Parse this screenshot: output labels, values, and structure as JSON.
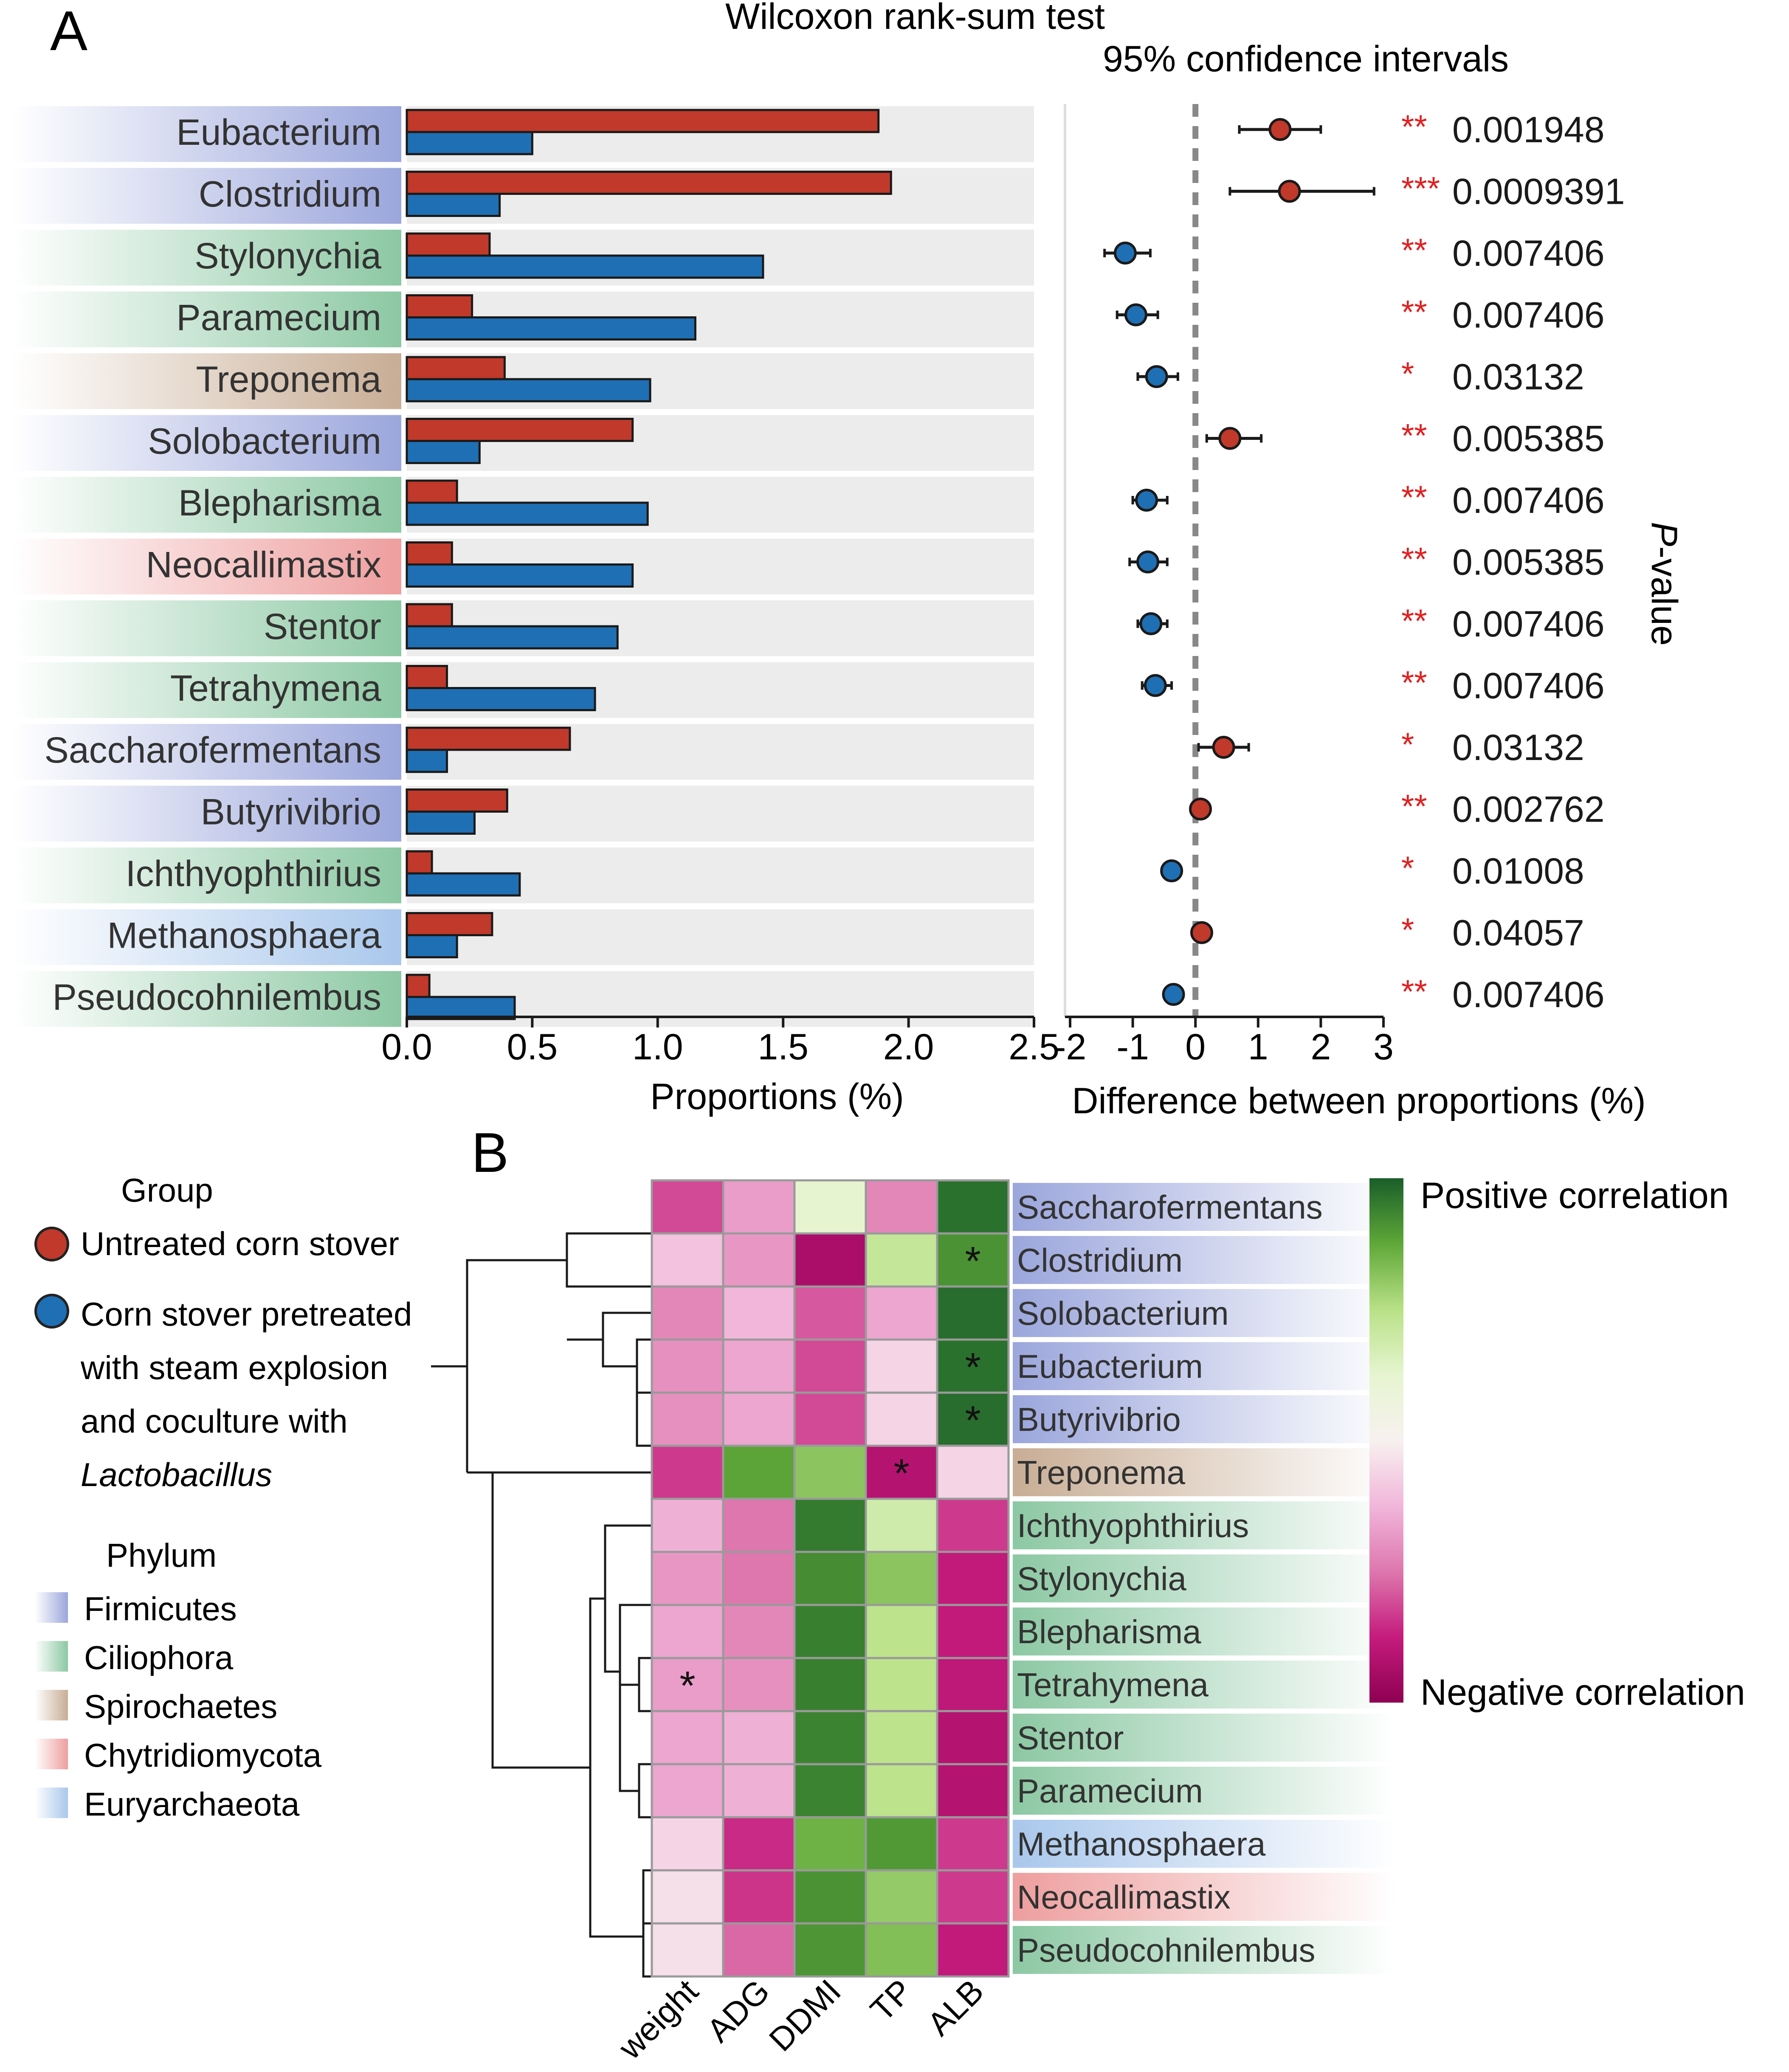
{
  "panelA": {
    "label": "A",
    "title": "Wilcoxon rank-sum test",
    "ci_title": "95% confidence intervals",
    "xlabel_bar": "Proportions (%)",
    "xlabel_ci": "Difference between proportions (%)",
    "pvalue_label_prefix": "P",
    "pvalue_label_suffix": "-value"
  },
  "panelB": {
    "label": "B",
    "legend_group_title": "Group",
    "legend_untreated": "Untreated corn stover",
    "legend_treated_lines": [
      "Corn stover pretreated",
      "with steam explosion",
      "and coculture with"
    ],
    "legend_treated_italic": "Lactobacillus",
    "legend_phylum_title": "Phylum",
    "phyla": [
      {
        "name": "Firmicutes",
        "color": "#9ba6dc"
      },
      {
        "name": "Ciliophora",
        "color": "#8cc8a3"
      },
      {
        "name": "Spirochaetes",
        "color": "#c8ad95"
      },
      {
        "name": "Chytridiomycota",
        "color": "#ee9e9e"
      },
      {
        "name": "Euryarchaeota",
        "color": "#a9c7ec"
      }
    ],
    "colorbar_top": "Positive correlation",
    "colorbar_bottom": "Negative correlation"
  },
  "colors": {
    "untreated": "#c0392b",
    "treated": "#1f6fb4",
    "significance": "#e02020"
  },
  "chart_data": [
    {
      "type": "bar",
      "title": "Wilcoxon rank-sum test",
      "xlabel": "Proportions (%)",
      "xlim": [
        0,
        2.5
      ],
      "xticks": [
        "0.0",
        "0.5",
        "1.0",
        "1.5",
        "2.0",
        "2.5"
      ],
      "categories": [
        "Eubacterium",
        "Clostridium",
        "Stylonychia",
        "Paramecium",
        "Treponema",
        "Solobacterium",
        "Blepharisma",
        "Neocallimastix",
        "Stentor",
        "Tetrahymena",
        "Saccharofermentans",
        "Butyrivibrio",
        "Ichthyophthirius",
        "Methanosphaera",
        "Pseudocohnilembus"
      ],
      "phylum": [
        "Firmicutes",
        "Firmicutes",
        "Ciliophora",
        "Ciliophora",
        "Spirochaetes",
        "Firmicutes",
        "Ciliophora",
        "Chytridiomycota",
        "Ciliophora",
        "Ciliophora",
        "Firmicutes",
        "Firmicutes",
        "Ciliophora",
        "Euryarchaeota",
        "Ciliophora"
      ],
      "series": [
        {
          "name": "Untreated corn stover",
          "values": [
            1.88,
            1.93,
            0.33,
            0.26,
            0.39,
            0.9,
            0.2,
            0.18,
            0.18,
            0.16,
            0.65,
            0.4,
            0.1,
            0.34,
            0.09
          ]
        },
        {
          "name": "Corn stover pretreated with steam explosion and coculture with Lactobacillus",
          "values": [
            0.5,
            0.37,
            1.42,
            1.15,
            0.97,
            0.29,
            0.96,
            0.9,
            0.84,
            0.75,
            0.16,
            0.27,
            0.45,
            0.2,
            0.43
          ]
        }
      ]
    },
    {
      "type": "scatter",
      "title": "95% confidence intervals",
      "xlabel": "Difference between proportions (%)",
      "xlim": [
        -2,
        3
      ],
      "xticks": [
        "-2",
        "-1",
        "0",
        "1",
        "2",
        "3"
      ],
      "categories": [
        "Eubacterium",
        "Clostridium",
        "Stylonychia",
        "Paramecium",
        "Treponema",
        "Solobacterium",
        "Blepharisma",
        "Neocallimastix",
        "Stentor",
        "Tetrahymena",
        "Saccharofermentans",
        "Butyrivibrio",
        "Ichthyophthirius",
        "Methanosphaera",
        "Pseudocohnilembus"
      ],
      "diff": [
        1.35,
        1.5,
        -1.12,
        -0.95,
        -0.62,
        0.55,
        -0.78,
        -0.76,
        -0.71,
        -0.64,
        0.45,
        0.08,
        -0.38,
        0.1,
        -0.35
      ],
      "ci_low": [
        0.7,
        0.55,
        -1.45,
        -1.25,
        -0.92,
        0.18,
        -1.0,
        -1.05,
        -0.92,
        -0.85,
        0.05,
        0.0,
        -0.48,
        0.02,
        -0.45
      ],
      "ci_high": [
        2.0,
        2.85,
        -0.72,
        -0.6,
        -0.28,
        1.05,
        -0.45,
        -0.45,
        -0.45,
        -0.38,
        0.85,
        0.16,
        -0.28,
        0.18,
        -0.25
      ],
      "significance": [
        "**",
        "***",
        "**",
        "**",
        "*",
        "**",
        "**",
        "**",
        "**",
        "**",
        "*",
        "**",
        "*",
        "*",
        "**"
      ],
      "p_values": [
        "0.001948",
        "0.0009391",
        "0.007406",
        "0.007406",
        "0.03132",
        "0.005385",
        "0.007406",
        "0.005385",
        "0.007406",
        "0.007406",
        "0.03132",
        "0.002762",
        "0.01008",
        "0.04057",
        "0.007406"
      ]
    },
    {
      "type": "heatmap",
      "columns": [
        "weight",
        "ADG",
        "DDMI",
        "TP",
        "ALB"
      ],
      "rows": [
        "Saccharofermentans",
        "Clostridium",
        "Solobacterium",
        "Eubacterium",
        "Butyrivibrio",
        "Treponema",
        "Ichthyophthirius",
        "Stylonychia",
        "Blepharisma",
        "Tetrahymena",
        "Stentor",
        "Paramecium",
        "Methanosphaera",
        "Neocallimastix",
        "Pseudocohnilembus"
      ],
      "row_phylum": [
        "Firmicutes",
        "Firmicutes",
        "Firmicutes",
        "Firmicutes",
        "Firmicutes",
        "Spirochaetes",
        "Ciliophora",
        "Ciliophora",
        "Ciliophora",
        "Ciliophora",
        "Ciliophora",
        "Ciliophora",
        "Euryarchaeota",
        "Chytridiomycota",
        "Ciliophora"
      ],
      "values": [
        [
          -0.45,
          -0.18,
          0.1,
          -0.25,
          0.9
        ],
        [
          -0.08,
          -0.2,
          -0.8,
          0.25,
          0.72
        ],
        [
          -0.25,
          -0.1,
          -0.4,
          -0.15,
          0.92
        ],
        [
          -0.22,
          -0.15,
          -0.45,
          -0.05,
          0.9
        ],
        [
          -0.22,
          -0.15,
          -0.45,
          -0.05,
          0.92
        ],
        [
          -0.5,
          0.62,
          0.45,
          -0.72,
          -0.05
        ],
        [
          -0.12,
          -0.3,
          0.85,
          0.2,
          -0.5
        ],
        [
          -0.2,
          -0.3,
          0.75,
          0.45,
          -0.62
        ],
        [
          -0.15,
          -0.25,
          0.82,
          0.28,
          -0.62
        ],
        [
          -0.18,
          -0.22,
          0.82,
          0.28,
          -0.65
        ],
        [
          -0.15,
          -0.12,
          0.8,
          0.28,
          -0.72
        ],
        [
          -0.15,
          -0.12,
          0.8,
          0.28,
          -0.72
        ],
        [
          -0.05,
          -0.55,
          0.55,
          0.68,
          -0.5
        ],
        [
          -0.03,
          -0.52,
          0.72,
          0.42,
          -0.5
        ],
        [
          -0.03,
          -0.35,
          0.7,
          0.48,
          -0.62
        ]
      ],
      "significant_cells": [
        [
          1,
          4
        ],
        [
          3,
          4
        ],
        [
          4,
          4
        ],
        [
          5,
          3
        ],
        [
          9,
          0
        ]
      ],
      "colorbar_labels": [
        "Positive correlation",
        "Negative correlation"
      ]
    }
  ]
}
